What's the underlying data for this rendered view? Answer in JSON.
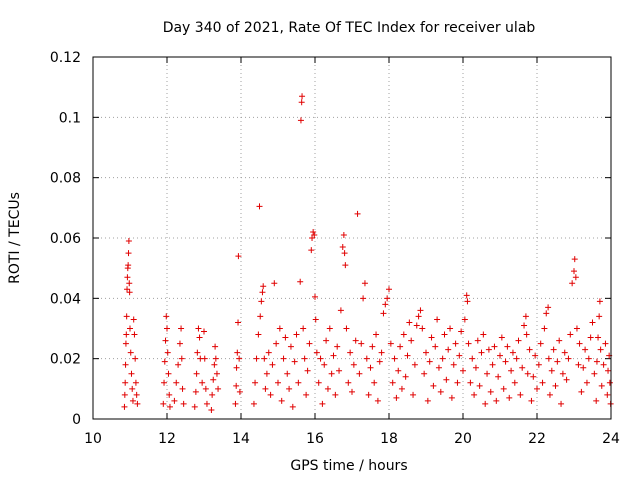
{
  "chart_data": {
    "type": "scatter",
    "title": "Day 340 of 2021, Rate Of TEC Index for receiver ulab",
    "xlabel": "GPS time / hours",
    "ylabel": "ROTI / TECUs",
    "xlim": [
      10,
      24
    ],
    "ylim": [
      0,
      0.12
    ],
    "xticks": [
      10,
      12,
      14,
      16,
      18,
      20,
      22,
      24
    ],
    "xtick_labels": [
      "10",
      "12",
      "14",
      "16",
      "18",
      "20",
      "22",
      "24"
    ],
    "yticks": [
      0,
      0.02,
      0.04,
      0.06,
      0.08,
      0.1,
      0.12
    ],
    "ytick_labels": [
      "0",
      "0.02",
      "0.04",
      "0.06",
      "0.08",
      "0.1",
      "0.12"
    ],
    "grid": true,
    "marker": "+",
    "marker_color": "#e00000",
    "series": [
      {
        "name": "ROTI",
        "points": [
          [
            10.85,
            0.004
          ],
          [
            10.86,
            0.008
          ],
          [
            10.87,
            0.012
          ],
          [
            10.88,
            0.018
          ],
          [
            10.89,
            0.025
          ],
          [
            10.9,
            0.028
          ],
          [
            10.91,
            0.034
          ],
          [
            10.92,
            0.043
          ],
          [
            10.93,
            0.047
          ],
          [
            10.94,
            0.05
          ],
          [
            10.95,
            0.051
          ],
          [
            10.96,
            0.055
          ],
          [
            10.97,
            0.059
          ],
          [
            10.98,
            0.045
          ],
          [
            10.99,
            0.042
          ],
          [
            11.0,
            0.03
          ],
          [
            11.02,
            0.022
          ],
          [
            11.04,
            0.015
          ],
          [
            11.06,
            0.01
          ],
          [
            11.08,
            0.006
          ],
          [
            11.1,
            0.033
          ],
          [
            11.12,
            0.028
          ],
          [
            11.14,
            0.02
          ],
          [
            11.16,
            0.012
          ],
          [
            11.18,
            0.008
          ],
          [
            11.2,
            0.005
          ],
          [
            11.9,
            0.005
          ],
          [
            11.92,
            0.012
          ],
          [
            11.94,
            0.019
          ],
          [
            11.96,
            0.026
          ],
          [
            11.98,
            0.034
          ],
          [
            12.0,
            0.03
          ],
          [
            12.02,
            0.022
          ],
          [
            12.04,
            0.015
          ],
          [
            12.06,
            0.008
          ],
          [
            12.08,
            0.004
          ],
          [
            12.2,
            0.006
          ],
          [
            12.25,
            0.012
          ],
          [
            12.3,
            0.018
          ],
          [
            12.35,
            0.025
          ],
          [
            12.38,
            0.03
          ],
          [
            12.4,
            0.02
          ],
          [
            12.42,
            0.01
          ],
          [
            12.45,
            0.005
          ],
          [
            12.75,
            0.004
          ],
          [
            12.78,
            0.009
          ],
          [
            12.8,
            0.015
          ],
          [
            12.82,
            0.022
          ],
          [
            12.85,
            0.03
          ],
          [
            12.88,
            0.027
          ],
          [
            12.9,
            0.02
          ],
          [
            12.95,
            0.012
          ],
          [
            13.0,
            0.029
          ],
          [
            13.02,
            0.02
          ],
          [
            13.05,
            0.01
          ],
          [
            13.08,
            0.005
          ],
          [
            13.2,
            0.003
          ],
          [
            13.22,
            0.008
          ],
          [
            13.25,
            0.013
          ],
          [
            13.28,
            0.018
          ],
          [
            13.3,
            0.024
          ],
          [
            13.32,
            0.02
          ],
          [
            13.35,
            0.015
          ],
          [
            13.38,
            0.01
          ],
          [
            13.85,
            0.005
          ],
          [
            13.87,
            0.011
          ],
          [
            13.88,
            0.017
          ],
          [
            13.9,
            0.022
          ],
          [
            13.92,
            0.032
          ],
          [
            13.93,
            0.054
          ],
          [
            13.95,
            0.02
          ],
          [
            13.97,
            0.009
          ],
          [
            14.35,
            0.005
          ],
          [
            14.38,
            0.012
          ],
          [
            14.42,
            0.02
          ],
          [
            14.47,
            0.028
          ],
          [
            14.5,
            0.0705
          ],
          [
            14.52,
            0.034
          ],
          [
            14.55,
            0.039
          ],
          [
            14.58,
            0.042
          ],
          [
            14.6,
            0.044
          ],
          [
            14.63,
            0.02
          ],
          [
            14.66,
            0.01
          ],
          [
            14.7,
            0.015
          ],
          [
            14.75,
            0.022
          ],
          [
            14.8,
            0.008
          ],
          [
            14.85,
            0.018
          ],
          [
            14.9,
            0.045
          ],
          [
            14.95,
            0.025
          ],
          [
            15.0,
            0.012
          ],
          [
            15.05,
            0.03
          ],
          [
            15.1,
            0.006
          ],
          [
            15.15,
            0.02
          ],
          [
            15.2,
            0.027
          ],
          [
            15.25,
            0.015
          ],
          [
            15.3,
            0.01
          ],
          [
            15.35,
            0.024
          ],
          [
            15.4,
            0.004
          ],
          [
            15.45,
            0.019
          ],
          [
            15.5,
            0.028
          ],
          [
            15.55,
            0.012
          ],
          [
            15.6,
            0.0455
          ],
          [
            15.62,
            0.099
          ],
          [
            15.64,
            0.105
          ],
          [
            15.65,
            0.107
          ],
          [
            15.68,
            0.03
          ],
          [
            15.72,
            0.02
          ],
          [
            15.76,
            0.008
          ],
          [
            15.8,
            0.016
          ],
          [
            15.85,
            0.025
          ],
          [
            15.9,
            0.056
          ],
          [
            15.92,
            0.06
          ],
          [
            15.95,
            0.062
          ],
          [
            15.98,
            0.061
          ],
          [
            16.0,
            0.0405
          ],
          [
            16.02,
            0.033
          ],
          [
            16.05,
            0.022
          ],
          [
            16.1,
            0.012
          ],
          [
            16.15,
            0.02
          ],
          [
            16.2,
            0.005
          ],
          [
            16.25,
            0.018
          ],
          [
            16.3,
            0.026
          ],
          [
            16.35,
            0.01
          ],
          [
            16.4,
            0.03
          ],
          [
            16.45,
            0.015
          ],
          [
            16.5,
            0.021
          ],
          [
            16.55,
            0.008
          ],
          [
            16.6,
            0.024
          ],
          [
            16.65,
            0.016
          ],
          [
            16.7,
            0.036
          ],
          [
            16.75,
            0.057
          ],
          [
            16.78,
            0.061
          ],
          [
            16.8,
            0.055
          ],
          [
            16.82,
            0.051
          ],
          [
            16.85,
            0.03
          ],
          [
            16.9,
            0.012
          ],
          [
            16.95,
            0.022
          ],
          [
            17.0,
            0.009
          ],
          [
            17.05,
            0.018
          ],
          [
            17.1,
            0.026
          ],
          [
            17.15,
            0.068
          ],
          [
            17.2,
            0.015
          ],
          [
            17.25,
            0.025
          ],
          [
            17.3,
            0.04
          ],
          [
            17.35,
            0.045
          ],
          [
            17.4,
            0.02
          ],
          [
            17.45,
            0.008
          ],
          [
            17.5,
            0.017
          ],
          [
            17.55,
            0.024
          ],
          [
            17.6,
            0.012
          ],
          [
            17.65,
            0.028
          ],
          [
            17.7,
            0.006
          ],
          [
            17.75,
            0.019
          ],
          [
            17.8,
            0.022
          ],
          [
            17.85,
            0.035
          ],
          [
            17.9,
            0.038
          ],
          [
            17.95,
            0.04
          ],
          [
            18.0,
            0.043
          ],
          [
            18.05,
            0.025
          ],
          [
            18.1,
            0.012
          ],
          [
            18.15,
            0.02
          ],
          [
            18.2,
            0.007
          ],
          [
            18.25,
            0.016
          ],
          [
            18.3,
            0.024
          ],
          [
            18.35,
            0.01
          ],
          [
            18.4,
            0.028
          ],
          [
            18.45,
            0.014
          ],
          [
            18.5,
            0.021
          ],
          [
            18.55,
            0.032
          ],
          [
            18.6,
            0.026
          ],
          [
            18.65,
            0.008
          ],
          [
            18.7,
            0.018
          ],
          [
            18.75,
            0.031
          ],
          [
            18.8,
            0.034
          ],
          [
            18.85,
            0.036
          ],
          [
            18.9,
            0.03
          ],
          [
            18.95,
            0.015
          ],
          [
            19.0,
            0.022
          ],
          [
            19.05,
            0.006
          ],
          [
            19.1,
            0.019
          ],
          [
            19.15,
            0.027
          ],
          [
            19.2,
            0.011
          ],
          [
            19.25,
            0.024
          ],
          [
            19.3,
            0.033
          ],
          [
            19.35,
            0.017
          ],
          [
            19.4,
            0.009
          ],
          [
            19.45,
            0.02
          ],
          [
            19.5,
            0.028
          ],
          [
            19.55,
            0.013
          ],
          [
            19.6,
            0.023
          ],
          [
            19.65,
            0.03
          ],
          [
            19.7,
            0.007
          ],
          [
            19.75,
            0.018
          ],
          [
            19.8,
            0.025
          ],
          [
            19.85,
            0.012
          ],
          [
            19.9,
            0.021
          ],
          [
            19.95,
            0.029
          ],
          [
            20.0,
            0.016
          ],
          [
            20.05,
            0.033
          ],
          [
            20.1,
            0.041
          ],
          [
            20.12,
            0.039
          ],
          [
            20.15,
            0.025
          ],
          [
            20.2,
            0.012
          ],
          [
            20.25,
            0.02
          ],
          [
            20.3,
            0.008
          ],
          [
            20.35,
            0.017
          ],
          [
            20.4,
            0.026
          ],
          [
            20.45,
            0.011
          ],
          [
            20.5,
            0.022
          ],
          [
            20.55,
            0.028
          ],
          [
            20.6,
            0.005
          ],
          [
            20.65,
            0.015
          ],
          [
            20.7,
            0.023
          ],
          [
            20.75,
            0.009
          ],
          [
            20.8,
            0.018
          ],
          [
            20.85,
            0.024
          ],
          [
            20.9,
            0.006
          ],
          [
            20.95,
            0.014
          ],
          [
            21.0,
            0.021
          ],
          [
            21.05,
            0.027
          ],
          [
            21.1,
            0.01
          ],
          [
            21.15,
            0.019
          ],
          [
            21.2,
            0.024
          ],
          [
            21.25,
            0.007
          ],
          [
            21.3,
            0.016
          ],
          [
            21.35,
            0.022
          ],
          [
            21.4,
            0.012
          ],
          [
            21.45,
            0.02
          ],
          [
            21.5,
            0.026
          ],
          [
            21.55,
            0.008
          ],
          [
            21.6,
            0.017
          ],
          [
            21.65,
            0.031
          ],
          [
            21.7,
            0.034
          ],
          [
            21.72,
            0.028
          ],
          [
            21.75,
            0.015
          ],
          [
            21.8,
            0.023
          ],
          [
            21.85,
            0.006
          ],
          [
            21.9,
            0.014
          ],
          [
            21.95,
            0.021
          ],
          [
            22.0,
            0.01
          ],
          [
            22.05,
            0.018
          ],
          [
            22.1,
            0.025
          ],
          [
            22.15,
            0.012
          ],
          [
            22.2,
            0.03
          ],
          [
            22.25,
            0.035
          ],
          [
            22.3,
            0.037
          ],
          [
            22.32,
            0.02
          ],
          [
            22.35,
            0.008
          ],
          [
            22.4,
            0.016
          ],
          [
            22.45,
            0.023
          ],
          [
            22.5,
            0.011
          ],
          [
            22.55,
            0.019
          ],
          [
            22.6,
            0.026
          ],
          [
            22.65,
            0.005
          ],
          [
            22.7,
            0.015
          ],
          [
            22.75,
            0.022
          ],
          [
            22.8,
            0.013
          ],
          [
            22.85,
            0.02
          ],
          [
            22.9,
            0.028
          ],
          [
            22.95,
            0.045
          ],
          [
            23.0,
            0.049
          ],
          [
            23.02,
            0.053
          ],
          [
            23.05,
            0.047
          ],
          [
            23.08,
            0.03
          ],
          [
            23.12,
            0.018
          ],
          [
            23.15,
            0.025
          ],
          [
            23.2,
            0.009
          ],
          [
            23.25,
            0.017
          ],
          [
            23.3,
            0.023
          ],
          [
            23.35,
            0.012
          ],
          [
            23.4,
            0.02
          ],
          [
            23.45,
            0.027
          ],
          [
            23.5,
            0.032
          ],
          [
            23.55,
            0.015
          ],
          [
            23.6,
            0.006
          ],
          [
            23.62,
            0.019
          ],
          [
            23.65,
            0.027
          ],
          [
            23.68,
            0.034
          ],
          [
            23.7,
            0.039
          ],
          [
            23.72,
            0.023
          ],
          [
            23.75,
            0.011
          ],
          [
            23.8,
            0.018
          ],
          [
            23.85,
            0.025
          ],
          [
            23.9,
            0.008
          ],
          [
            23.92,
            0.016
          ],
          [
            23.95,
            0.021
          ],
          [
            23.97,
            0.012
          ],
          [
            23.99,
            0.005
          ]
        ]
      }
    ]
  }
}
